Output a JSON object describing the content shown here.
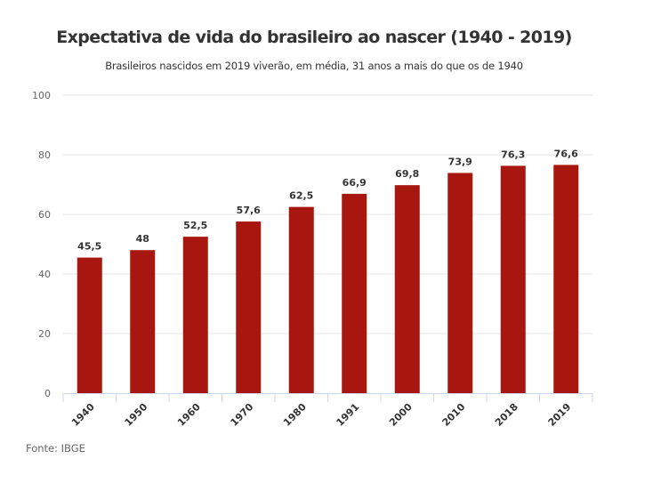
{
  "chart_data": {
    "type": "bar",
    "title": "Expectativa de vida do brasileiro ao nascer (1940 - 2019)",
    "subtitle": "Brasileiros nascidos em 2019 viverão, em média, 31 anos a mais do que os de 1940",
    "categories": [
      "1940",
      "1950",
      "1960",
      "1970",
      "1980",
      "1991",
      "2000",
      "2010",
      "2018",
      "2019"
    ],
    "values": [
      45.5,
      48,
      52.5,
      57.6,
      62.5,
      66.9,
      69.8,
      73.9,
      76.3,
      76.6
    ],
    "data_labels": [
      "45,5",
      "48",
      "52,5",
      "57,6",
      "62,5",
      "66,9",
      "69,8",
      "73,9",
      "76,3",
      "76,6"
    ],
    "ylim": [
      0,
      100
    ],
    "yticks": [
      "0",
      "20",
      "40",
      "60",
      "80",
      "100"
    ],
    "xlabel": "",
    "ylabel": "",
    "grid": true,
    "bar_color": "#a8170f",
    "source": "Fonte: IBGE"
  }
}
